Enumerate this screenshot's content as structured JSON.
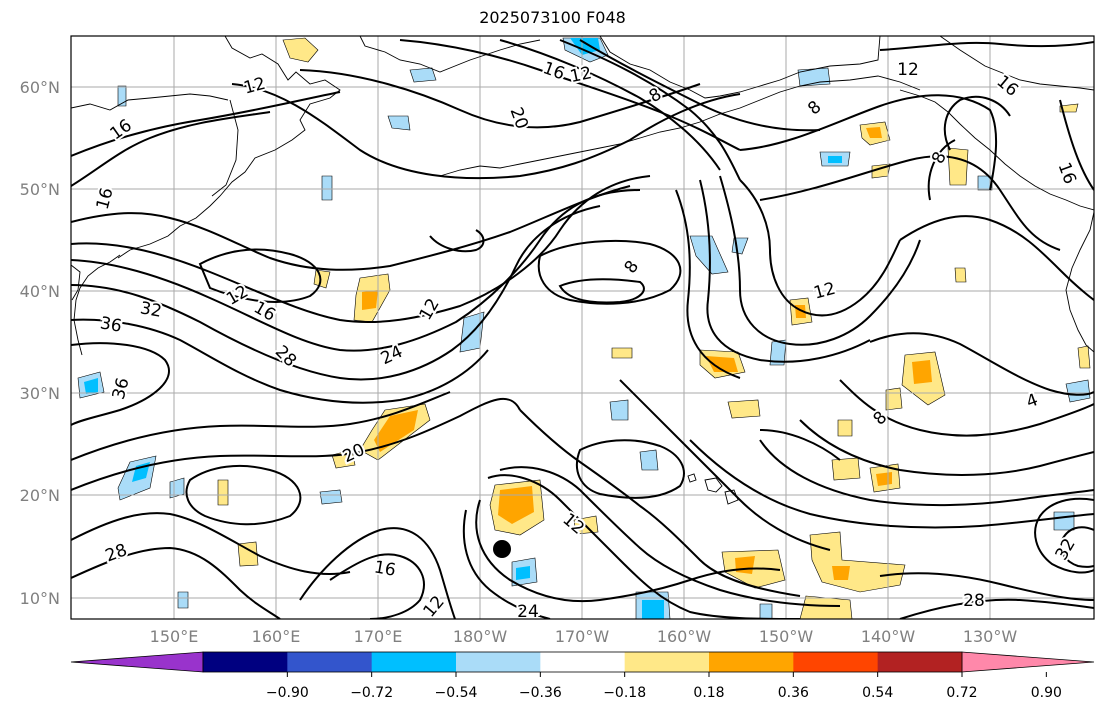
{
  "title": "2025073100 F048",
  "map": {
    "lat_labels": [
      "60°N",
      "50°N",
      "40°N",
      "30°N",
      "20°N",
      "10°N"
    ],
    "lon_labels": [
      "150°E",
      "160°E",
      "170°E",
      "180°W",
      "170°W",
      "160°W",
      "150°W",
      "140°W",
      "130°W"
    ],
    "contour_labels": [
      "12",
      "16",
      "16",
      "16",
      "12",
      "8",
      "12",
      "16",
      "16",
      "20",
      "8",
      "8",
      "8",
      "12",
      "12",
      "16",
      "12",
      "32",
      "36",
      "36",
      "28",
      "24",
      "20",
      "8",
      "4",
      "28",
      "16",
      "12",
      "24",
      "12",
      "28",
      "32"
    ],
    "line_color": "#000000",
    "grid_color": "#aaaaaa",
    "coast_color": "#000000",
    "storm_marker": "hurricane-center-dot"
  },
  "colorbar": {
    "colors": [
      "#9933cc",
      "#000080",
      "#3355cc",
      "#00bfff",
      "#aadcf8",
      "#ffffff",
      "#ffe888",
      "#ffa500",
      "#ff4500",
      "#b22222",
      "#ff88aa"
    ],
    "tick_labels": [
      "−0.90",
      "−0.72",
      "−0.54",
      "−0.36",
      "−0.18",
      "0.18",
      "0.36",
      "0.54",
      "0.72",
      "0.90"
    ]
  }
}
